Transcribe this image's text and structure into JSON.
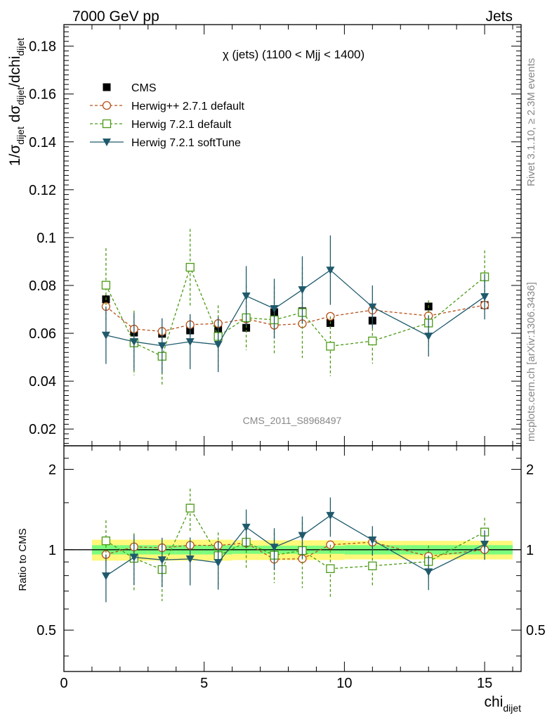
{
  "header": {
    "left": "7000 GeV pp",
    "right": "Jets"
  },
  "side_text": {
    "rivet": "Rivet 3.1.10, ≥ 2.3M events",
    "mcplots": "mcplots.cern.ch [arXiv:1306.3436]"
  },
  "chart_data": {
    "type": "line",
    "title": "χ (jets) (1100 < Mjj < 1400)",
    "watermark": "CMS_2011_S8968497",
    "xlabel": "chi_dijet",
    "ylabel": "1/σ_dijet dσ_dijet/dchi_dijet",
    "ratio_ylabel": "Ratio to CMS",
    "xlim": [
      0,
      16.3
    ],
    "ylim": [
      0.013,
      0.189
    ],
    "ratio_ylim": [
      0.35,
      2.45
    ],
    "ratio_log": true,
    "x_ticks": [
      0,
      5,
      10,
      15
    ],
    "y_ticks": [
      0.02,
      0.04,
      0.06,
      0.08,
      0.1,
      0.12,
      0.14,
      0.16,
      0.18
    ],
    "y_tick_labels": [
      "0.02",
      "0.04",
      "0.06",
      "0.08",
      "0.1",
      "0.12",
      "0.14",
      "0.16",
      "0.18"
    ],
    "ratio_ticks": [
      0.5,
      1,
      2
    ],
    "ratio_tick_labels": [
      "0.5",
      "1",
      "2"
    ],
    "legend_position": "top-left",
    "x": [
      1.5,
      2.5,
      3.5,
      4.5,
      5.5,
      6.5,
      7.5,
      8.5,
      9.5,
      11,
      13,
      15
    ],
    "x_edges": [
      1,
      2,
      3,
      4,
      5,
      6,
      7,
      8,
      9,
      10,
      12,
      14,
      16
    ],
    "series": [
      {
        "name": "CMS",
        "style": "data",
        "color": "#000000",
        "values": [
          0.0742,
          0.0603,
          0.0598,
          0.0612,
          0.0618,
          0.0623,
          0.0688,
          0.0692,
          0.0643,
          0.0653,
          0.0712,
          0.0718
        ],
        "errors": [
          0.002,
          0.002,
          0.002,
          0.002,
          0.002,
          0.002,
          0.002,
          0.002,
          0.002,
          0.002,
          0.002,
          0.002
        ],
        "band_inner": [
          0.04,
          0.04,
          0.04,
          0.04,
          0.04,
          0.035,
          0.035,
          0.035,
          0.035,
          0.04,
          0.04,
          0.04
        ],
        "band_outer": [
          0.09,
          0.09,
          0.09,
          0.09,
          0.09,
          0.085,
          0.085,
          0.085,
          0.085,
          0.08,
          0.08,
          0.08
        ],
        "band_inner_color": "#7cfc7c",
        "band_outer_color": "#fff87a"
      },
      {
        "name": "Herwig++ 2.7.1 default",
        "style": "open-circle",
        "color": "#b8501a",
        "dashed": true,
        "values": [
          0.0712,
          0.0618,
          0.0608,
          0.0636,
          0.0641,
          0.066,
          0.0634,
          0.064,
          0.0671,
          0.0697,
          0.0673,
          0.0718
        ],
        "errors": [
          0.0005,
          0.0005,
          0.0005,
          0.0005,
          0.0005,
          0.0005,
          0.0005,
          0.0005,
          0.0005,
          0.0005,
          0.0005,
          0.0005
        ]
      },
      {
        "name": "Herwig 7.2.1 default",
        "style": "open-square",
        "color": "#4a9a14",
        "dashed": true,
        "values": [
          0.0801,
          0.056,
          0.0504,
          0.0876,
          0.0587,
          0.0665,
          0.0656,
          0.0687,
          0.0546,
          0.0568,
          0.0643,
          0.0836
        ],
        "errors": [
          0.0155,
          0.0135,
          0.012,
          0.016,
          0.013,
          0.0135,
          0.014,
          0.019,
          0.0125,
          0.0095,
          0.0095,
          0.011
        ]
      },
      {
        "name": "Herwig 7.2.1 softTune",
        "style": "filled-triangle-down",
        "color": "#1f5a6c",
        "dashed": false,
        "values": [
          0.0592,
          0.0565,
          0.0548,
          0.0565,
          0.0553,
          0.0756,
          0.0703,
          0.0782,
          0.0864,
          0.071,
          0.0588,
          0.0753
        ],
        "errors": [
          0.012,
          0.012,
          0.0115,
          0.0115,
          0.0115,
          0.0125,
          0.0125,
          0.014,
          0.0145,
          0.009,
          0.0085,
          0.0095
        ]
      }
    ]
  }
}
